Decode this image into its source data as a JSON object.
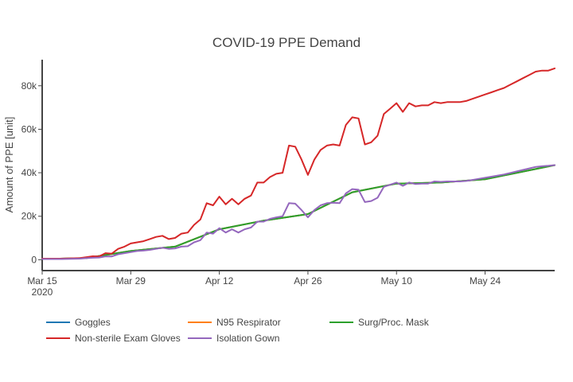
{
  "chart_data": {
    "type": "line",
    "title": "COVID-19 PPE Demand",
    "xlabel": "",
    "ylabel": "Amount of PPE [unit]",
    "x_range": [
      "2020-03-15",
      "2020-06-04"
    ],
    "ylim": [
      -5000,
      92000
    ],
    "x_ticks": [
      {
        "date": "2020-03-15",
        "label": "Mar 15",
        "sublabel": "2020"
      },
      {
        "date": "2020-03-29",
        "label": "Mar 29",
        "sublabel": ""
      },
      {
        "date": "2020-04-12",
        "label": "Apr 12",
        "sublabel": ""
      },
      {
        "date": "2020-04-26",
        "label": "Apr 26",
        "sublabel": ""
      },
      {
        "date": "2020-05-10",
        "label": "May 10",
        "sublabel": ""
      },
      {
        "date": "2020-05-24",
        "label": "May 24",
        "sublabel": ""
      }
    ],
    "y_ticks": [
      {
        "value": 0,
        "label": "0"
      },
      {
        "value": 20000,
        "label": "20k"
      },
      {
        "value": 40000,
        "label": "40k"
      },
      {
        "value": 60000,
        "label": "60k"
      },
      {
        "value": 80000,
        "label": "80k"
      }
    ],
    "grid": false,
    "legend_position": "bottom",
    "series": [
      {
        "name": "Goggles",
        "color": "#1f77b4",
        "x": [
          "2020-03-15",
          "2020-03-22",
          "2020-03-29",
          "2020-04-05",
          "2020-04-12",
          "2020-04-19",
          "2020-04-26",
          "2020-05-03",
          "2020-05-10",
          "2020-05-17",
          "2020-05-24",
          "2020-06-04"
        ],
        "values": [
          300,
          800,
          4000,
          6000,
          14000,
          18000,
          21000,
          31000,
          35000,
          35500,
          37000,
          43500
        ]
      },
      {
        "name": "N95 Respirator",
        "color": "#ff7f0e",
        "x": [
          "2020-03-15",
          "2020-03-22",
          "2020-03-29",
          "2020-04-05",
          "2020-04-12",
          "2020-04-19",
          "2020-04-26",
          "2020-05-03",
          "2020-05-10",
          "2020-05-17",
          "2020-05-24",
          "2020-06-04"
        ],
        "values": [
          300,
          800,
          4000,
          6000,
          14000,
          18000,
          21000,
          31000,
          35000,
          35500,
          37000,
          43500
        ]
      },
      {
        "name": "Surg/Proc. Mask",
        "color": "#2ca02c",
        "x": [
          "2020-03-15",
          "2020-03-22",
          "2020-03-29",
          "2020-04-05",
          "2020-04-12",
          "2020-04-19",
          "2020-04-26",
          "2020-05-03",
          "2020-05-10",
          "2020-05-17",
          "2020-05-24",
          "2020-06-04"
        ],
        "values": [
          300,
          800,
          4000,
          6000,
          14000,
          18000,
          21000,
          31000,
          35000,
          35500,
          37000,
          43500
        ]
      },
      {
        "name": "Non-sterile Exam Gloves",
        "color": "#d62728",
        "x": [
          "2020-03-15",
          "2020-03-18",
          "2020-03-21",
          "2020-03-22",
          "2020-03-23",
          "2020-03-24",
          "2020-03-25",
          "2020-03-26",
          "2020-03-27",
          "2020-03-28",
          "2020-03-29",
          "2020-03-30",
          "2020-03-31",
          "2020-04-01",
          "2020-04-02",
          "2020-04-03",
          "2020-04-04",
          "2020-04-05",
          "2020-04-06",
          "2020-04-07",
          "2020-04-08",
          "2020-04-09",
          "2020-04-10",
          "2020-04-11",
          "2020-04-12",
          "2020-04-13",
          "2020-04-14",
          "2020-04-15",
          "2020-04-16",
          "2020-04-17",
          "2020-04-18",
          "2020-04-19",
          "2020-04-20",
          "2020-04-21",
          "2020-04-22",
          "2020-04-23",
          "2020-04-24",
          "2020-04-25",
          "2020-04-26",
          "2020-04-27",
          "2020-04-28",
          "2020-04-29",
          "2020-04-30",
          "2020-05-01",
          "2020-05-02",
          "2020-05-03",
          "2020-05-04",
          "2020-05-05",
          "2020-05-06",
          "2020-05-07",
          "2020-05-08",
          "2020-05-09",
          "2020-05-10",
          "2020-05-11",
          "2020-05-12",
          "2020-05-13",
          "2020-05-14",
          "2020-05-15",
          "2020-05-16",
          "2020-05-17",
          "2020-05-18",
          "2020-05-19",
          "2020-05-20",
          "2020-05-21",
          "2020-05-22",
          "2020-05-23",
          "2020-05-24",
          "2020-05-25",
          "2020-05-26",
          "2020-05-27",
          "2020-05-28",
          "2020-05-29",
          "2020-05-30",
          "2020-05-31",
          "2020-06-01",
          "2020-06-02",
          "2020-06-03",
          "2020-06-04"
        ],
        "values": [
          500,
          500,
          800,
          1200,
          1600,
          1500,
          3000,
          2800,
          5000,
          6000,
          7500,
          8000,
          8500,
          9500,
          10500,
          11000,
          9500,
          10000,
          12000,
          12500,
          16000,
          18500,
          26000,
          25000,
          29000,
          25500,
          28000,
          25500,
          28000,
          29500,
          35500,
          35500,
          38000,
          39500,
          40000,
          52500,
          52000,
          46000,
          39000,
          46000,
          50500,
          52500,
          53000,
          52500,
          62000,
          65500,
          65000,
          53000,
          54000,
          57000,
          67000,
          69500,
          72000,
          68000,
          72000,
          70500,
          71000,
          71000,
          72500,
          72000,
          72500,
          72500,
          72500,
          73000,
          74000,
          75000,
          76000,
          77000,
          78000,
          79000,
          80500,
          82000,
          83500,
          85000,
          86500,
          87000,
          87000,
          88000
        ]
      },
      {
        "name": "Isolation Gown",
        "color": "#9467bd",
        "x": [
          "2020-03-15",
          "2020-03-18",
          "2020-03-21",
          "2020-03-22",
          "2020-03-23",
          "2020-03-24",
          "2020-03-25",
          "2020-03-26",
          "2020-03-27",
          "2020-03-28",
          "2020-03-29",
          "2020-03-30",
          "2020-03-31",
          "2020-04-01",
          "2020-04-02",
          "2020-04-03",
          "2020-04-04",
          "2020-04-05",
          "2020-04-06",
          "2020-04-07",
          "2020-04-08",
          "2020-04-09",
          "2020-04-10",
          "2020-04-11",
          "2020-04-12",
          "2020-04-13",
          "2020-04-14",
          "2020-04-15",
          "2020-04-16",
          "2020-04-17",
          "2020-04-18",
          "2020-04-19",
          "2020-04-20",
          "2020-04-21",
          "2020-04-22",
          "2020-04-23",
          "2020-04-24",
          "2020-04-25",
          "2020-04-26",
          "2020-04-27",
          "2020-04-28",
          "2020-04-29",
          "2020-04-30",
          "2020-05-01",
          "2020-05-02",
          "2020-05-03",
          "2020-05-04",
          "2020-05-05",
          "2020-05-06",
          "2020-05-07",
          "2020-05-08",
          "2020-05-09",
          "2020-05-10",
          "2020-05-11",
          "2020-05-12",
          "2020-05-13",
          "2020-05-14",
          "2020-05-15",
          "2020-05-16",
          "2020-05-17",
          "2020-05-18",
          "2020-05-19",
          "2020-05-20",
          "2020-05-21",
          "2020-05-22",
          "2020-05-23",
          "2020-05-24",
          "2020-05-25",
          "2020-05-26",
          "2020-05-27",
          "2020-05-28",
          "2020-05-29",
          "2020-05-30",
          "2020-05-31",
          "2020-06-01",
          "2020-06-02",
          "2020-06-03",
          "2020-06-04"
        ],
        "values": [
          300,
          300,
          500,
          700,
          900,
          1000,
          1500,
          1500,
          2500,
          3000,
          3500,
          4000,
          4200,
          4500,
          5000,
          5500,
          5000,
          5200,
          6000,
          6200,
          8000,
          9000,
          12500,
          12000,
          14500,
          12500,
          14000,
          12500,
          14000,
          14800,
          17500,
          17500,
          18800,
          19500,
          20000,
          26000,
          25800,
          22800,
          19500,
          22800,
          25000,
          26000,
          26200,
          26000,
          30500,
          32500,
          32200,
          26500,
          27000,
          28500,
          33500,
          34500,
          35500,
          34000,
          35500,
          34800,
          35000,
          35000,
          36000,
          35800,
          36000,
          36000,
          36000,
          36200,
          36700,
          37200,
          37700,
          38200,
          38700,
          39200,
          39900,
          40600,
          41300,
          42000,
          42700,
          43000,
          43200,
          43500
        ]
      }
    ]
  }
}
